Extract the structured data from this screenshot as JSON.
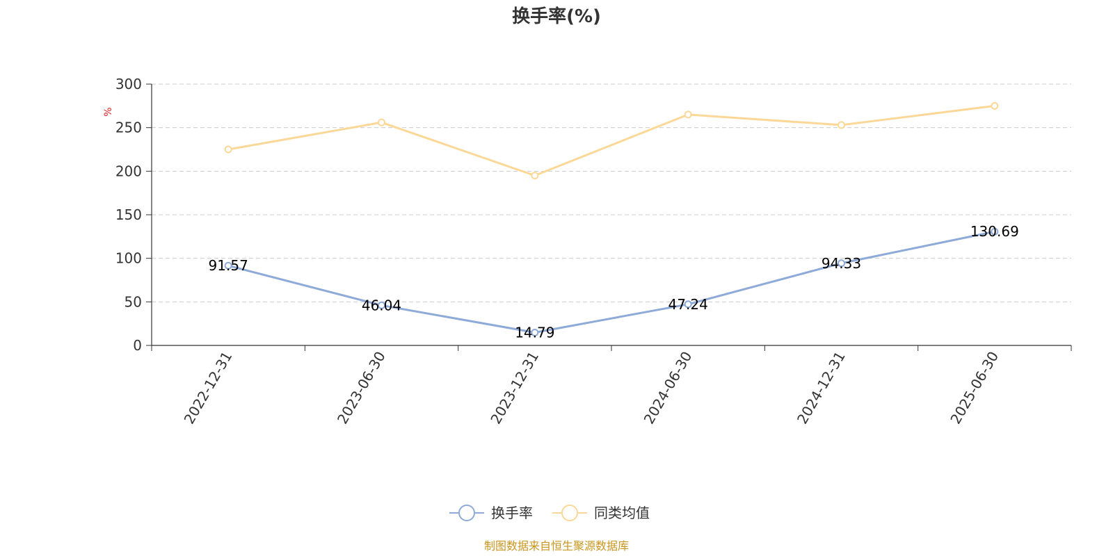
{
  "chart_data": {
    "type": "line",
    "title": "换手率(%)",
    "ylabel": "%",
    "ylim": [
      0,
      300
    ],
    "yticks": [
      0,
      50,
      100,
      150,
      200,
      250,
      300
    ],
    "categories": [
      "2022-12-31",
      "2023-06-30",
      "2023-12-31",
      "2024-06-30",
      "2024-12-31",
      "2025-06-30"
    ],
    "series": [
      {
        "name": "换手率",
        "color": "#8eaad8",
        "values": [
          91.57,
          46.04,
          14.79,
          47.24,
          94.33,
          130.69
        ],
        "labels": [
          "91.57",
          "46.04",
          "14.79",
          "47.24",
          "94.33",
          "130.69"
        ]
      },
      {
        "name": "同类均值",
        "color": "#fbd898",
        "values": [
          225,
          256,
          195,
          265,
          253,
          275
        ]
      }
    ],
    "grid": true,
    "legend_position": "bottom"
  },
  "colors": {
    "unit_label": "#e02020",
    "source_text": "#c8961e",
    "axis": "#333333",
    "grid": "#cccccc"
  },
  "source": "制图数据来自恒生聚源数据库"
}
